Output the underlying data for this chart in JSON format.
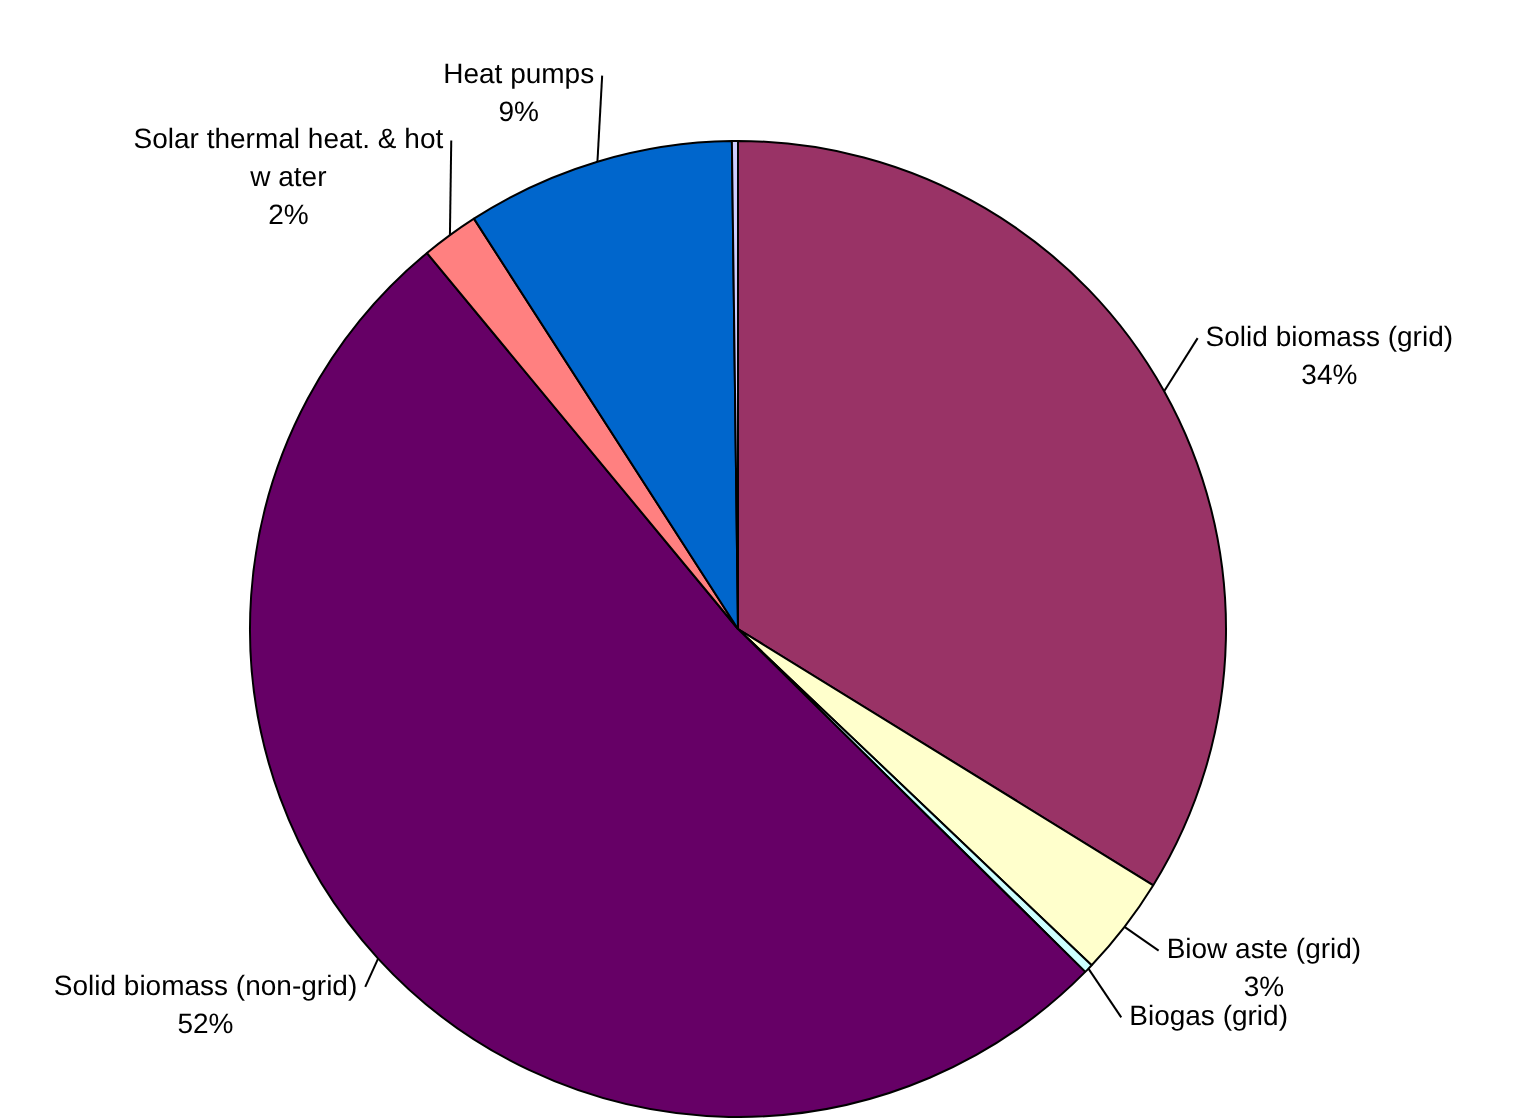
{
  "chart_data": {
    "type": "pie",
    "categories": [
      "Solid biomass (grid)",
      "Biow aste (grid)",
      "Biogas (grid)",
      "Solid biomass (non-grid)",
      "Solar thermal heat. & hot w ater",
      "Heat pumps",
      null
    ],
    "values": [
      33.8,
      3.3,
      0.3,
      51.6,
      1.9,
      8.9,
      0.2
    ],
    "colors": [
      "#993366",
      "#ffffcc",
      "#ccffff",
      "#660066",
      "#ff8080",
      "#0066cc",
      "#ccccff"
    ],
    "value_labels": [
      "34%",
      "3%",
      null,
      "52%",
      "2%",
      "9%",
      null
    ],
    "legend": false
  }
}
